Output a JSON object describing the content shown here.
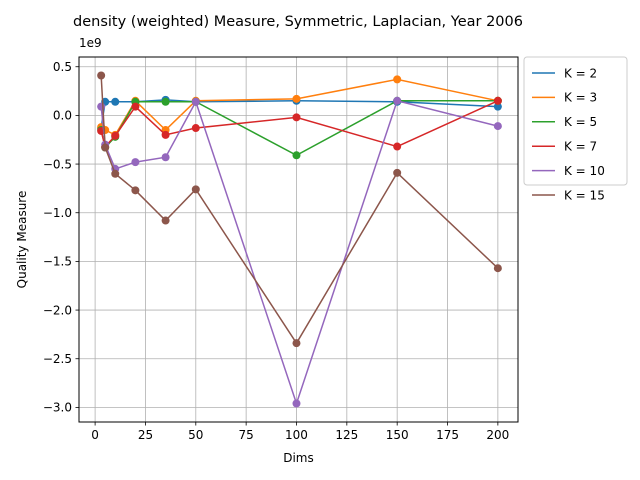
{
  "chart_data": {
    "type": "line",
    "title": "density (weighted) Measure, Symmetric, Laplacian, Year 2006",
    "xlabel": "Dims",
    "ylabel": "Quality Measure",
    "y_offset_label": "1e9",
    "xlim": [
      -8,
      210
    ],
    "ylim": [
      -3.15,
      0.6
    ],
    "xticks": [
      0,
      25,
      50,
      75,
      100,
      125,
      150,
      175,
      200
    ],
    "yticks": [
      0.5,
      0.0,
      -0.5,
      -1.0,
      -1.5,
      -2.0,
      -2.5,
      -3.0
    ],
    "ytick_labels": [
      "0.5",
      "0.0",
      "−0.5",
      "−1.0",
      "−1.5",
      "−2.0",
      "−2.5",
      "−3.0"
    ],
    "grid": true,
    "legend_position": "outside-right-top",
    "series": [
      {
        "name": "K = 2",
        "color": "#1f77b4",
        "x": [
          3,
          5,
          10,
          20,
          35,
          50,
          100,
          150,
          200
        ],
        "y": [
          -0.13,
          0.14,
          0.14,
          0.14,
          0.16,
          0.14,
          0.15,
          0.14,
          0.09
        ]
      },
      {
        "name": "K = 3",
        "color": "#ff7f0e",
        "x": [
          3,
          5,
          10,
          20,
          35,
          50,
          100,
          150,
          200
        ],
        "y": [
          -0.12,
          -0.15,
          -0.2,
          0.15,
          -0.15,
          0.15,
          0.17,
          0.37,
          0.15
        ]
      },
      {
        "name": "K = 5",
        "color": "#2ca02c",
        "x": [
          3,
          5,
          10,
          20,
          35,
          50,
          100,
          150,
          200
        ],
        "y": [
          -0.15,
          -0.33,
          -0.22,
          0.14,
          0.14,
          0.14,
          -0.41,
          0.15,
          0.15
        ]
      },
      {
        "name": "K = 7",
        "color": "#d62728",
        "x": [
          3,
          5,
          10,
          20,
          35,
          50,
          100,
          150,
          200
        ],
        "y": [
          -0.16,
          -0.32,
          -0.21,
          0.09,
          -0.2,
          -0.13,
          -0.02,
          -0.32,
          0.15
        ]
      },
      {
        "name": "K = 10",
        "color": "#9467bd",
        "x": [
          3,
          5,
          10,
          20,
          35,
          50,
          100,
          150,
          200
        ],
        "y": [
          0.09,
          -0.3,
          -0.55,
          -0.48,
          -0.43,
          0.14,
          -2.96,
          0.15,
          -0.11
        ]
      },
      {
        "name": "K = 15",
        "color": "#8c564b",
        "x": [
          3,
          5,
          10,
          20,
          35,
          50,
          100,
          150,
          200
        ],
        "y": [
          0.41,
          -0.33,
          -0.6,
          -0.77,
          -1.08,
          -0.76,
          -2.34,
          -0.59,
          -1.57
        ]
      }
    ]
  }
}
